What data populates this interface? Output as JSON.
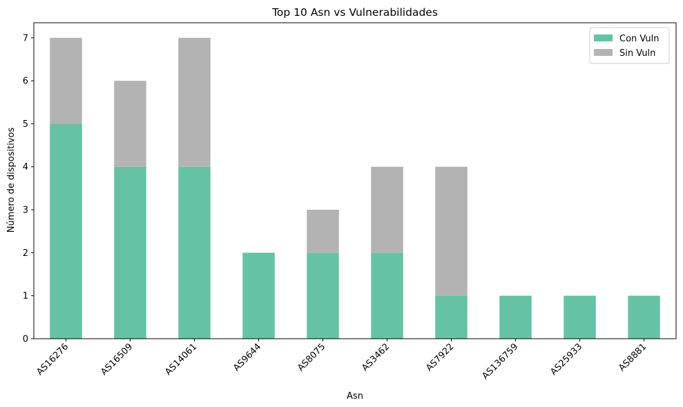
{
  "chart_data": {
    "type": "bar",
    "stacked": true,
    "title": "Top 10 Asn vs Vulnerabilidades",
    "xlabel": "Asn",
    "ylabel": "Número de dispositivos",
    "ylim": [
      0,
      7.35
    ],
    "yticks": [
      0,
      1,
      2,
      3,
      4,
      5,
      6,
      7
    ],
    "categories": [
      "AS16276",
      "AS16509",
      "AS14061",
      "AS9644",
      "AS8075",
      "AS3462",
      "AS7922",
      "AS136759",
      "AS25933",
      "AS8881"
    ],
    "series": [
      {
        "name": "Con Vuln",
        "color": "#66c2a5",
        "values": [
          5,
          4,
          4,
          2,
          2,
          2,
          1,
          1,
          1,
          1
        ]
      },
      {
        "name": "Sin Vuln",
        "color": "#b3b3b3",
        "values": [
          2,
          2,
          3,
          0,
          1,
          2,
          3,
          0,
          0,
          0
        ]
      }
    ],
    "legend_position": "top-right",
    "grid": false
  }
}
